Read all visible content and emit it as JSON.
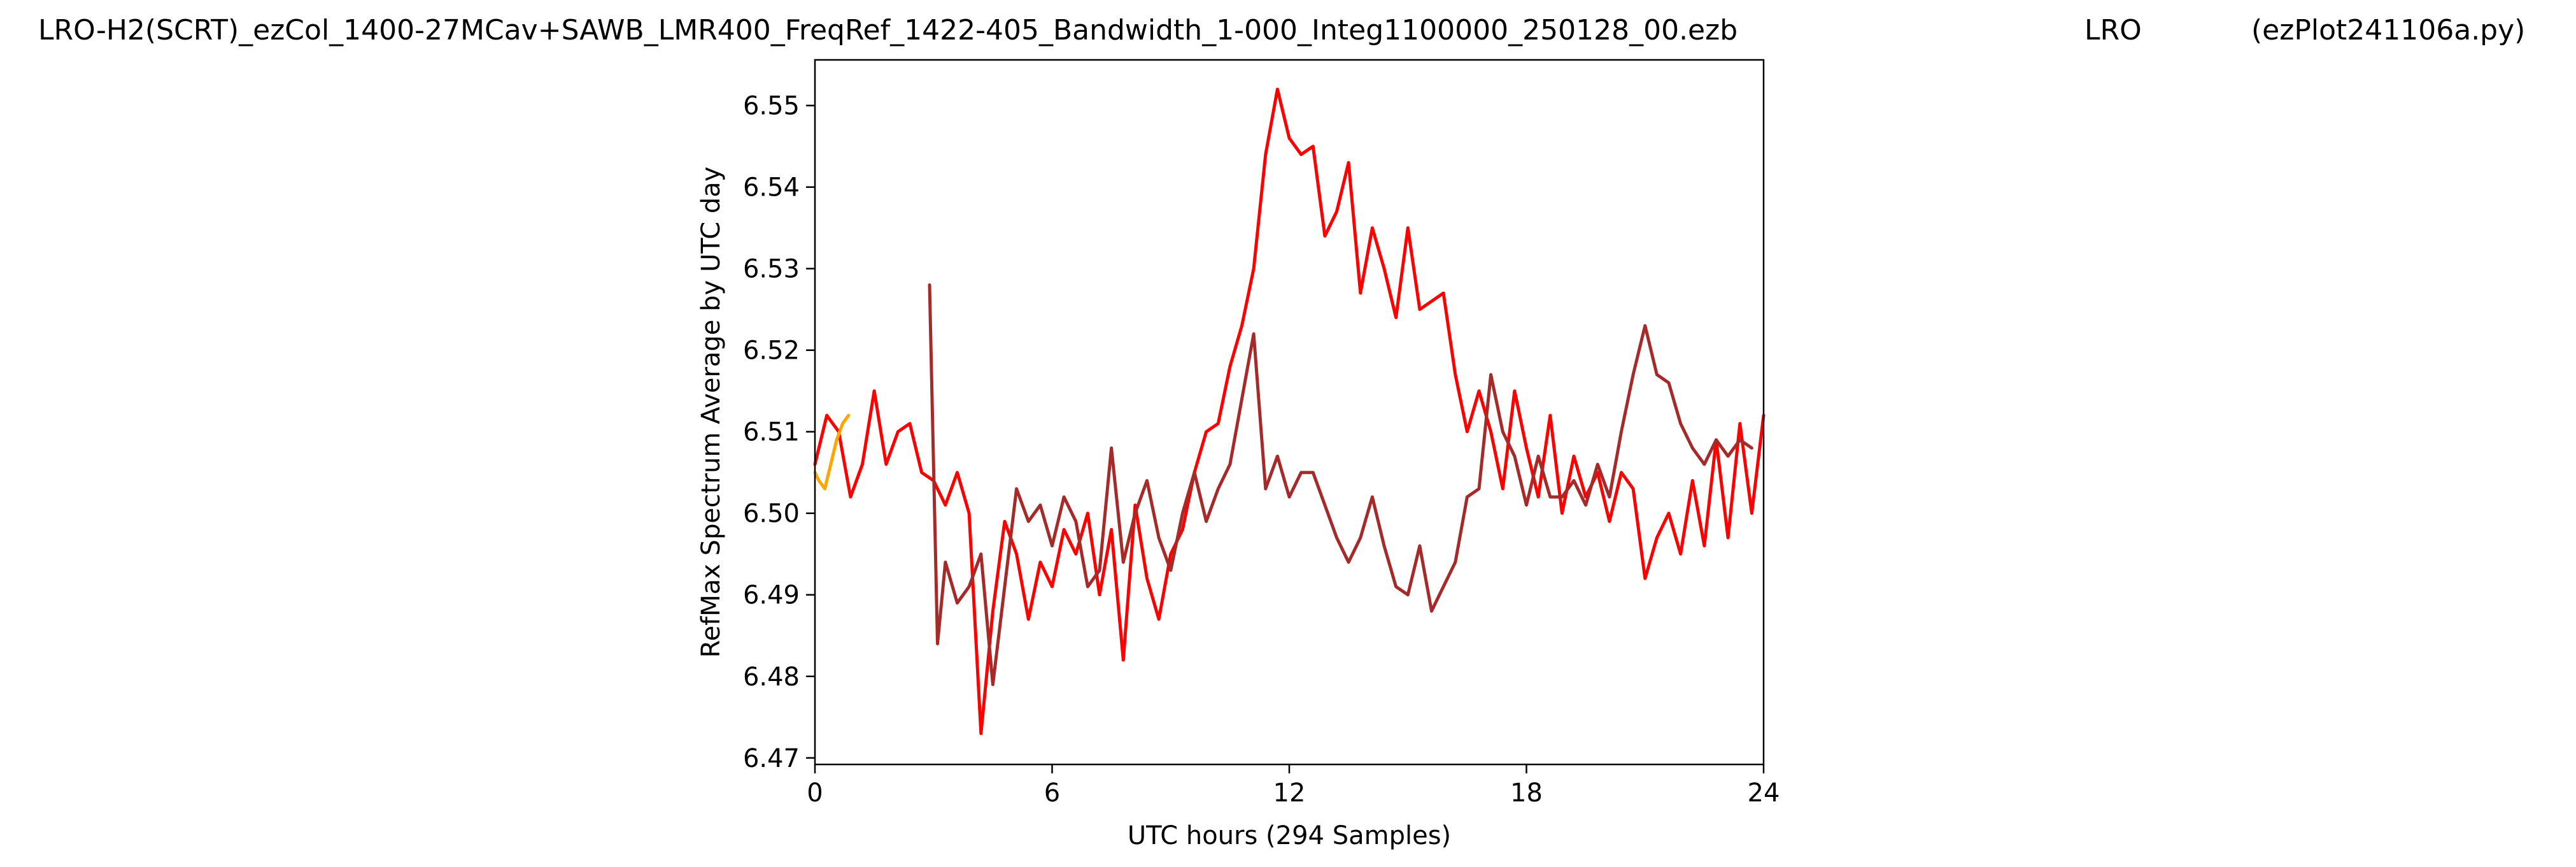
{
  "header": {
    "left": "LRO-H2(SCRT)_ezCol_1400-27MCav+SAWB_LMR400_FreqRef_1422-405_Bandwidth_1-000_Integ1100000_250128_00.ezb",
    "center": "LRO",
    "right": "(ezPlot241106a.py)"
  },
  "chart_data": {
    "type": "line",
    "title": "",
    "xlabel": "UTC hours  (294 Samples)",
    "ylabel": "RefMax Spectrum Average by UTC day",
    "xlim": [
      0,
      24
    ],
    "ylim": [
      6.4692,
      6.5556
    ],
    "xticks": [
      0,
      6,
      12,
      18,
      24
    ],
    "xtick_labels": [
      "0",
      "6",
      "12",
      "18",
      "24"
    ],
    "yticks": [
      6.47,
      6.48,
      6.49,
      6.5,
      6.51,
      6.52,
      6.53,
      6.54,
      6.55
    ],
    "ytick_labels": [
      "6.47",
      "6.48",
      "6.49",
      "6.50",
      "6.51",
      "6.52",
      "6.53",
      "6.54",
      "6.55"
    ],
    "grid": false,
    "legend": "none",
    "series": [
      {
        "color": "#ff0000",
        "x": [
          0,
          0.3,
          0.6,
          0.9,
          1.2,
          1.5,
          1.8,
          2.1,
          2.4,
          2.7,
          3.0,
          3.3,
          3.6,
          3.9,
          4.2,
          4.5,
          4.8,
          5.1,
          5.4,
          5.7,
          6.0,
          6.3,
          6.6,
          6.9,
          7.2,
          7.5,
          7.8,
          8.1,
          8.4,
          8.7,
          9.0,
          9.3,
          9.6,
          9.9,
          10.2,
          10.5,
          10.8,
          11.1,
          11.4,
          11.7,
          12.0,
          12.3,
          12.6,
          12.9,
          13.2,
          13.5,
          13.8,
          14.1,
          14.4,
          14.7,
          15.0,
          15.3,
          15.6,
          15.9,
          16.2,
          16.5,
          16.8,
          17.1,
          17.4,
          17.7,
          18.0,
          18.3,
          18.6,
          18.9,
          19.2,
          19.5,
          19.8,
          20.1,
          20.4,
          20.7,
          21.0,
          21.3,
          21.6,
          21.9,
          22.2,
          22.5,
          22.8,
          23.1,
          23.4,
          23.7,
          24.0
        ],
        "y": [
          6.506,
          6.512,
          6.51,
          6.502,
          6.506,
          6.515,
          6.506,
          6.51,
          6.511,
          6.505,
          6.504,
          6.501,
          6.505,
          6.5,
          6.473,
          6.488,
          6.499,
          6.495,
          6.487,
          6.494,
          6.491,
          6.498,
          6.495,
          6.5,
          6.49,
          6.498,
          6.482,
          6.501,
          6.492,
          6.487,
          6.495,
          6.498,
          6.505,
          6.51,
          6.511,
          6.518,
          6.523,
          6.53,
          6.544,
          6.552,
          6.546,
          6.544,
          6.545,
          6.534,
          6.537,
          6.543,
          6.527,
          6.535,
          6.53,
          6.524,
          6.535,
          6.525,
          6.526,
          6.527,
          6.517,
          6.51,
          6.515,
          6.51,
          6.503,
          6.515,
          6.508,
          6.502,
          6.512,
          6.5,
          6.507,
          6.502,
          6.505,
          6.499,
          6.505,
          6.503,
          6.492,
          6.497,
          6.5,
          6.495,
          6.504,
          6.496,
          6.509,
          6.497,
          6.511,
          6.5,
          6.512
        ]
      },
      {
        "color": "#a52a2a",
        "x": [
          2.9,
          3.1,
          3.3,
          3.6,
          3.9,
          4.2,
          4.5,
          4.8,
          5.1,
          5.4,
          5.7,
          6.0,
          6.3,
          6.6,
          6.9,
          7.2,
          7.5,
          7.8,
          8.1,
          8.4,
          8.7,
          9.0,
          9.3,
          9.6,
          9.9,
          10.2,
          10.5,
          10.8,
          11.1,
          11.4,
          11.7,
          12.0,
          12.3,
          12.6,
          12.9,
          13.2,
          13.5,
          13.8,
          14.1,
          14.4,
          14.7,
          15.0,
          15.3,
          15.6,
          15.9,
          16.2,
          16.5,
          16.8,
          17.1,
          17.4,
          17.7,
          18.0,
          18.3,
          18.6,
          18.9,
          19.2,
          19.5,
          19.8,
          20.1,
          20.4,
          20.7,
          21.0,
          21.3,
          21.6,
          21.9,
          22.2,
          22.5,
          22.8,
          23.1,
          23.4,
          23.7
        ],
        "y": [
          6.528,
          6.484,
          6.494,
          6.489,
          6.491,
          6.495,
          6.479,
          6.491,
          6.503,
          6.499,
          6.501,
          6.496,
          6.502,
          6.499,
          6.491,
          6.493,
          6.508,
          6.494,
          6.5,
          6.504,
          6.497,
          6.493,
          6.5,
          6.505,
          6.499,
          6.503,
          6.506,
          6.514,
          6.522,
          6.503,
          6.507,
          6.502,
          6.505,
          6.505,
          6.501,
          6.497,
          6.494,
          6.497,
          6.502,
          6.496,
          6.491,
          6.49,
          6.496,
          6.488,
          6.491,
          6.494,
          6.502,
          6.503,
          6.517,
          6.51,
          6.507,
          6.501,
          6.507,
          6.502,
          6.502,
          6.504,
          6.501,
          6.506,
          6.502,
          6.51,
          6.517,
          6.523,
          6.517,
          6.516,
          6.511,
          6.508,
          6.506,
          6.509,
          6.507,
          6.509,
          6.508
        ]
      },
      {
        "color": "#ffa500",
        "x": [
          0.0,
          0.1,
          0.25,
          0.4,
          0.55,
          0.7,
          0.85
        ],
        "y": [
          6.505,
          6.504,
          6.503,
          6.506,
          6.509,
          6.511,
          6.512
        ]
      }
    ]
  }
}
